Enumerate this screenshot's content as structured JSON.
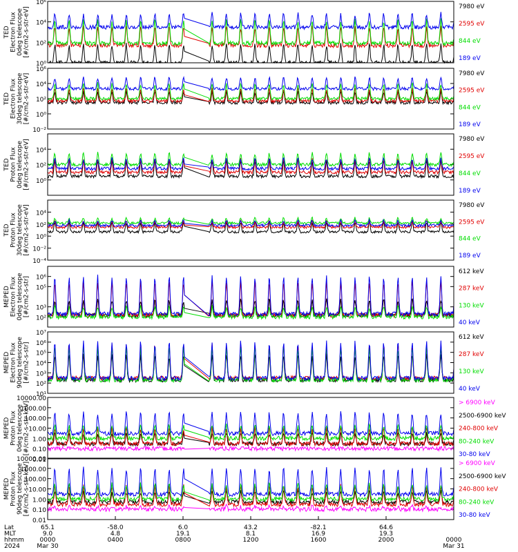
{
  "chart_data": [
    {
      "type": "line",
      "ylabel": [
        "TED",
        "Electron Flux",
        "0deg telescope",
        "[#/cm2-s-str-eV]"
      ],
      "log": true,
      "ylim": [
        1,
        1000000
      ],
      "yticks": [
        {
          "v": 1,
          "label": "10⁰"
        },
        {
          "v": 100,
          "label": "10²"
        },
        {
          "v": 10000,
          "label": "10⁴"
        },
        {
          "v": 1000000,
          "label": "10⁶"
        }
      ],
      "series": [
        {
          "name": "7980 eV",
          "color": "#000000",
          "baseline": 1,
          "peak": 60
        },
        {
          "name": "2595 eV",
          "color": "#e00000",
          "baseline": 50,
          "peak": 3000
        },
        {
          "name": "844 eV",
          "color": "#00dd00",
          "baseline": 80,
          "peak": 15000
        },
        {
          "name": "189 eV",
          "color": "#0000ee",
          "baseline": 3000,
          "peak": 60000
        }
      ]
    },
    {
      "type": "line",
      "ylabel": [
        "TED",
        "Electron Flux",
        "30deg telescope",
        "[#/cm2-s-str-eV]"
      ],
      "log": true,
      "ylim": [
        0.01,
        1000000
      ],
      "yticks": [
        {
          "v": 0.01,
          "label": "10⁻²"
        },
        {
          "v": 1,
          "label": "10⁰"
        },
        {
          "v": 100,
          "label": "10²"
        },
        {
          "v": 10000,
          "label": "10⁴"
        },
        {
          "v": 1000000,
          "label": "10⁶"
        }
      ],
      "series": [
        {
          "name": "7980 eV",
          "color": "#000000",
          "baseline": 30,
          "peak": 800
        },
        {
          "name": "2595 eV",
          "color": "#e00000",
          "baseline": 50,
          "peak": 2000
        },
        {
          "name": "844 eV",
          "color": "#00dd00",
          "baseline": 100,
          "peak": 10000
        },
        {
          "name": "189 eV",
          "color": "#0000ee",
          "baseline": 2000,
          "peak": 60000
        }
      ]
    },
    {
      "type": "line",
      "ylabel": [
        "TED",
        "Proton Flux",
        "0deg telescope",
        "[#/cm2-s-str-eV]"
      ],
      "log": true,
      "ylim": [
        0.01,
        1000000
      ],
      "yticks": [
        {
          "v": 1,
          "label": "10⁰"
        },
        {
          "v": 100,
          "label": "10²"
        },
        {
          "v": 10000,
          "label": "10⁴"
        }
      ],
      "series": [
        {
          "name": "7980 eV",
          "color": "#000000",
          "baseline": 3,
          "peak": 300
        },
        {
          "name": "2595 eV",
          "color": "#e00000",
          "baseline": 10,
          "peak": 500
        },
        {
          "name": "844 eV",
          "color": "#00dd00",
          "baseline": 100,
          "peak": 3000
        },
        {
          "name": "189 eV",
          "color": "#0000ee",
          "baseline": 30,
          "peak": 600
        }
      ]
    },
    {
      "type": "line",
      "ylabel": [
        "TED",
        "Proton Flux",
        "30deg telescope",
        "[#/cm2-s-str-eV]"
      ],
      "log": true,
      "ylim": [
        0.0001,
        1000000
      ],
      "yticks": [
        {
          "v": 0.0001,
          "label": "10⁻⁴"
        },
        {
          "v": 0.01,
          "label": "10⁻²"
        },
        {
          "v": 1,
          "label": "10⁰"
        },
        {
          "v": 100,
          "label": "10²"
        },
        {
          "v": 10000,
          "label": "10⁴"
        }
      ],
      "series": [
        {
          "name": "7980 eV",
          "color": "#000000",
          "baseline": 5,
          "peak": 200
        },
        {
          "name": "2595 eV",
          "color": "#e00000",
          "baseline": 30,
          "peak": 300
        },
        {
          "name": "844 eV",
          "color": "#00dd00",
          "baseline": 150,
          "peak": 1000
        },
        {
          "name": "189 eV",
          "color": "#0000ee",
          "baseline": 60,
          "peak": 400
        }
      ]
    },
    {
      "type": "line",
      "ylabel": [
        "MEPED",
        "Electron Flux",
        "0deg telescope",
        "[#/cm2-s-str]"
      ],
      "log": true,
      "ylim": [
        10,
        10000000
      ],
      "yticks": [
        {
          "v": 100,
          "label": "10²"
        },
        {
          "v": 1000,
          "label": "10³"
        },
        {
          "v": 100000,
          "label": "10⁵"
        },
        {
          "v": 1000000,
          "label": "10⁶"
        }
      ],
      "series": [
        {
          "name": "612 keV",
          "color": "#000000",
          "baseline": 150,
          "peak": 5000
        },
        {
          "name": "287 keV",
          "color": "#e00000",
          "baseline": 150,
          "peak": 300000
        },
        {
          "name": "130 keV",
          "color": "#00dd00",
          "baseline": 100,
          "peak": 1000
        },
        {
          "name": "40 keV",
          "color": "#0000ee",
          "baseline": 200,
          "peak": 1000000
        }
      ]
    },
    {
      "type": "line",
      "ylabel": [
        "MEPED",
        "Electron Flux",
        "90deg telescope",
        "[#/cm2-s-str]"
      ],
      "log": true,
      "ylim": [
        10,
        10000000
      ],
      "yticks": [
        {
          "v": 10,
          "label": "10¹"
        },
        {
          "v": 100,
          "label": "10²"
        },
        {
          "v": 1000,
          "label": "10³"
        },
        {
          "v": 10000,
          "label": "10⁴"
        },
        {
          "v": 100000,
          "label": "10⁵"
        },
        {
          "v": 1000000,
          "label": "10⁶"
        },
        {
          "v": 10000000,
          "label": "10⁷"
        }
      ],
      "series": [
        {
          "name": "612 keV",
          "color": "#000000",
          "baseline": 200,
          "peak": 50000
        },
        {
          "name": "287 keV",
          "color": "#e00000",
          "baseline": 300,
          "peak": 500000
        },
        {
          "name": "130 keV",
          "color": "#00dd00",
          "baseline": 200,
          "peak": 300000
        },
        {
          "name": "40 keV",
          "color": "#0000ee",
          "baseline": 300,
          "peak": 1000000
        }
      ]
    },
    {
      "type": "line",
      "ylabel": [
        "MEPED",
        "Proton Flux",
        "0deg telescope",
        "[#/cm2-s-str-keV]"
      ],
      "log": true,
      "ylim": [
        0.01,
        10000
      ],
      "yticks": [
        {
          "v": 0.01,
          "label": "0.01"
        },
        {
          "v": 0.1,
          "label": "0.10"
        },
        {
          "v": 1,
          "label": "1.00"
        },
        {
          "v": 10,
          "label": "10.00"
        },
        {
          "v": 100,
          "label": "100.00"
        },
        {
          "v": 1000,
          "label": "1000.00"
        },
        {
          "v": 10000,
          "label": "10000.00"
        }
      ],
      "series": [
        {
          "name": "> 6900 keV",
          "color": "#ff00ff",
          "baseline": 0.1,
          "peak": 0.1
        },
        {
          "name": "2500-6900 keV",
          "color": "#000000",
          "baseline": 0.3,
          "peak": 3
        },
        {
          "name": "240-800 keV",
          "color": "#e00000",
          "baseline": 0.3,
          "peak": 10
        },
        {
          "name": "80-240 keV",
          "color": "#00dd00",
          "baseline": 1,
          "peak": 20
        },
        {
          "name": "30-80 keV",
          "color": "#0000ee",
          "baseline": 3,
          "peak": 300
        }
      ]
    },
    {
      "type": "line",
      "ylabel": [
        "MEPED",
        "Proton Flux",
        "90deg telescope",
        "[#/cm2-s-str-keV]"
      ],
      "log": true,
      "ylim": [
        0.01,
        10000
      ],
      "yticks": [
        {
          "v": 0.01,
          "label": "0.01"
        },
        {
          "v": 0.1,
          "label": "0.10"
        },
        {
          "v": 1,
          "label": "1.00"
        },
        {
          "v": 10,
          "label": "10.00"
        },
        {
          "v": 100,
          "label": "100.00"
        },
        {
          "v": 1000,
          "label": "1000.00"
        },
        {
          "v": 10000,
          "label": "10000.00"
        }
      ],
      "series": [
        {
          "name": "> 6900 keV",
          "color": "#ff00ff",
          "baseline": 0.1,
          "peak": 0.2
        },
        {
          "name": "2500-6900 keV",
          "color": "#000000",
          "baseline": 0.5,
          "peak": 5
        },
        {
          "name": "240-800 keV",
          "color": "#e00000",
          "baseline": 0.3,
          "peak": 20
        },
        {
          "name": "80-240 keV",
          "color": "#00dd00",
          "baseline": 1,
          "peak": 30
        },
        {
          "name": "30-80 keV",
          "color": "#0000ee",
          "baseline": 3,
          "peak": 1000
        }
      ]
    }
  ],
  "xaxis": {
    "row_labels": [
      "Lat",
      "MLT",
      "hhmm",
      "2024"
    ],
    "ticks": [
      {
        "t": 0.0,
        "lat": "65.1",
        "mlt": "9.0",
        "hhmm": "0000",
        "date": "Mar 30"
      },
      {
        "t": 4.0,
        "lat": "-58.0",
        "mlt": "4.8",
        "hhmm": "0400",
        "date": ""
      },
      {
        "t": 8.0,
        "lat": "6.0",
        "mlt": "19.1",
        "hhmm": "0800",
        "date": ""
      },
      {
        "t": 12.0,
        "lat": "43.2",
        "mlt": "8.1",
        "hhmm": "1200",
        "date": ""
      },
      {
        "t": 16.0,
        "lat": "-82.1",
        "mlt": "16.9",
        "hhmm": "1600",
        "date": ""
      },
      {
        "t": 20.0,
        "lat": "64.6",
        "mlt": "19.3",
        "hhmm": "2000",
        "date": ""
      },
      {
        "t": 24.0,
        "lat": "",
        "mlt": "",
        "hhmm": "0000",
        "date": "Mar 31"
      }
    ],
    "range_hours": [
      0,
      24
    ],
    "data_gap_hours": [
      8.1,
      9.5
    ]
  }
}
